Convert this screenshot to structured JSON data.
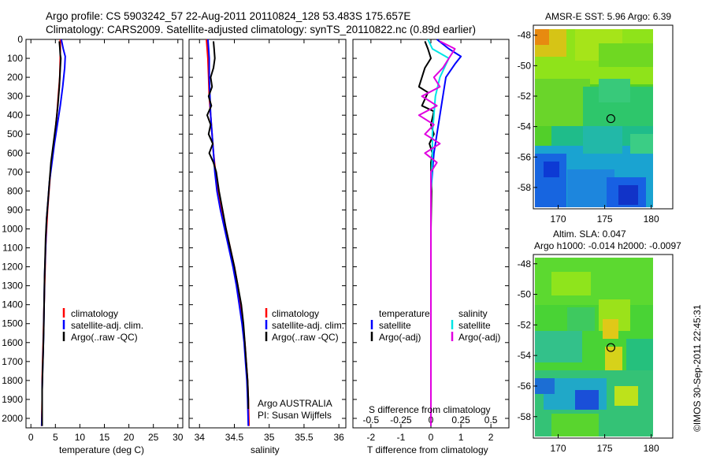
{
  "header": {
    "line1": "Argo profile: CS 5903242_57 22-Aug-2011 20110824_128 53.483S 175.657E",
    "line2": "Climatology: CARS2009. Satellite-adjusted climatology: synTS_20110822.nc (0.89d earlier)"
  },
  "footer_credit": "©IMOS 30-Sep-2011 22:45:31",
  "colors": {
    "climatology": "#ff0000",
    "satellite": "#0000ff",
    "argo": "#000000",
    "salinity_satellite": "#00e5e5",
    "salinity_argo": "#e000e0"
  },
  "chart_data": [
    {
      "id": "temperature",
      "type": "line",
      "xlabel": "temperature (deg C)",
      "ylabel": "",
      "xlim": [
        -1,
        31
      ],
      "ylim": [
        2050,
        0
      ],
      "xticks": [
        0,
        5,
        10,
        15,
        20,
        25,
        30
      ],
      "yticks": [
        0,
        100,
        200,
        300,
        400,
        500,
        600,
        700,
        800,
        900,
        1000,
        1100,
        1200,
        1300,
        1400,
        1500,
        1600,
        1700,
        1800,
        1900,
        2000
      ],
      "legend": [
        "climatology",
        "satellite-adj. clim.",
        "Argo(..raw -QC)"
      ],
      "series": [
        {
          "name": "climatology",
          "color": "#ff0000",
          "points": [
            [
              6.0,
              0
            ],
            [
              6.0,
              50
            ],
            [
              6.0,
              100
            ],
            [
              5.9,
              200
            ],
            [
              5.6,
              300
            ],
            [
              5.3,
              400
            ],
            [
              4.9,
              500
            ],
            [
              4.4,
              600
            ],
            [
              4.0,
              700
            ],
            [
              3.7,
              800
            ],
            [
              3.4,
              900
            ],
            [
              3.2,
              1000
            ],
            [
              3.0,
              1100
            ],
            [
              2.9,
              1200
            ],
            [
              2.8,
              1300
            ],
            [
              2.7,
              1400
            ],
            [
              2.6,
              1500
            ],
            [
              2.5,
              1600
            ],
            [
              2.4,
              1700
            ],
            [
              2.3,
              1800
            ],
            [
              2.3,
              1900
            ],
            [
              2.2,
              2040
            ]
          ]
        },
        {
          "name": "satellite-adj. clim.",
          "color": "#0000ff",
          "points": [
            [
              6.2,
              0
            ],
            [
              6.6,
              50
            ],
            [
              7.0,
              90
            ],
            [
              6.9,
              150
            ],
            [
              6.5,
              250
            ],
            [
              6.0,
              350
            ],
            [
              5.4,
              450
            ],
            [
              4.8,
              550
            ],
            [
              4.3,
              650
            ],
            [
              3.8,
              750
            ],
            [
              3.5,
              850
            ],
            [
              3.2,
              950
            ],
            [
              3.0,
              1100
            ],
            [
              2.8,
              1250
            ],
            [
              2.7,
              1400
            ],
            [
              2.6,
              1550
            ],
            [
              2.5,
              1650
            ],
            [
              2.4,
              1750
            ],
            [
              2.3,
              1850
            ],
            [
              2.3,
              1950
            ],
            [
              2.2,
              2040
            ]
          ]
        },
        {
          "name": "Argo(..raw -QC)",
          "color": "#000000",
          "points": [
            [
              5.8,
              10
            ],
            [
              5.9,
              40
            ],
            [
              6.0,
              80
            ],
            [
              6.1,
              100
            ],
            [
              6.0,
              150
            ],
            [
              5.9,
              200
            ],
            [
              5.8,
              250
            ],
            [
              5.5,
              350
            ],
            [
              5.1,
              450
            ],
            [
              4.6,
              550
            ],
            [
              4.1,
              650
            ],
            [
              3.8,
              750
            ],
            [
              3.5,
              850
            ],
            [
              3.2,
              950
            ],
            [
              3.0,
              1050
            ],
            [
              2.9,
              1150
            ],
            [
              2.8,
              1250
            ],
            [
              2.7,
              1400
            ],
            [
              2.6,
              1550
            ],
            [
              2.5,
              1650
            ],
            [
              2.4,
              1750
            ],
            [
              2.3,
              1850
            ],
            [
              2.3,
              1950
            ],
            [
              2.3,
              2040
            ]
          ]
        }
      ]
    },
    {
      "id": "salinity",
      "type": "line",
      "xlabel": "salinity",
      "ylabel": "",
      "xlim": [
        33.85,
        36.1
      ],
      "ylim": [
        2050,
        0
      ],
      "xticks": [
        34,
        34.5,
        35,
        35.5,
        36
      ],
      "xtick_labels": [
        "34",
        "34.5",
        "35",
        "35.5",
        "36"
      ],
      "legend": [
        "climatology",
        "satellite-adj. clim.",
        "Argo(..raw -QC)"
      ],
      "annotation": [
        "Argo AUSTRALIA",
        "PI: Susan Wijffels"
      ],
      "series": [
        {
          "name": "climatology",
          "color": "#ff0000",
          "points": [
            [
              34.1,
              0
            ],
            [
              34.11,
              50
            ],
            [
              34.12,
              100
            ],
            [
              34.13,
              200
            ],
            [
              34.14,
              300
            ],
            [
              34.16,
              400
            ],
            [
              34.18,
              500
            ],
            [
              34.2,
              600
            ],
            [
              34.23,
              700
            ],
            [
              34.27,
              800
            ],
            [
              34.32,
              900
            ],
            [
              34.38,
              1000
            ],
            [
              34.44,
              1100
            ],
            [
              34.5,
              1200
            ],
            [
              34.55,
              1300
            ],
            [
              34.59,
              1400
            ],
            [
              34.62,
              1500
            ],
            [
              34.65,
              1600
            ],
            [
              34.67,
              1700
            ],
            [
              34.69,
              1800
            ],
            [
              34.7,
              1900
            ],
            [
              34.71,
              2040
            ]
          ]
        },
        {
          "name": "satellite-adj. clim.",
          "color": "#0000ff",
          "points": [
            [
              34.12,
              0
            ],
            [
              34.13,
              50
            ],
            [
              34.14,
              100
            ],
            [
              34.14,
              200
            ],
            [
              34.15,
              300
            ],
            [
              34.16,
              400
            ],
            [
              34.18,
              500
            ],
            [
              34.2,
              600
            ],
            [
              34.22,
              700
            ],
            [
              34.25,
              800
            ],
            [
              34.3,
              900
            ],
            [
              34.36,
              1000
            ],
            [
              34.42,
              1100
            ],
            [
              34.48,
              1200
            ],
            [
              34.53,
              1300
            ],
            [
              34.57,
              1400
            ],
            [
              34.61,
              1500
            ],
            [
              34.64,
              1600
            ],
            [
              34.66,
              1700
            ],
            [
              34.68,
              1800
            ],
            [
              34.69,
              1900
            ],
            [
              34.7,
              2040
            ]
          ]
        },
        {
          "name": "Argo(..raw -QC)",
          "color": "#000000",
          "points": [
            [
              34.2,
              10
            ],
            [
              34.21,
              50
            ],
            [
              34.22,
              100
            ],
            [
              34.2,
              150
            ],
            [
              34.16,
              200
            ],
            [
              34.18,
              250
            ],
            [
              34.13,
              300
            ],
            [
              34.17,
              350
            ],
            [
              34.11,
              400
            ],
            [
              34.16,
              450
            ],
            [
              34.13,
              500
            ],
            [
              34.19,
              550
            ],
            [
              34.14,
              600
            ],
            [
              34.2,
              650
            ],
            [
              34.24,
              700
            ],
            [
              34.28,
              800
            ],
            [
              34.33,
              900
            ],
            [
              34.38,
              1000
            ],
            [
              34.44,
              1100
            ],
            [
              34.5,
              1200
            ],
            [
              34.55,
              1300
            ],
            [
              34.6,
              1400
            ],
            [
              34.63,
              1500
            ],
            [
              34.65,
              1600
            ],
            [
              34.67,
              1700
            ],
            [
              34.69,
              1800
            ],
            [
              34.7,
              1900
            ],
            [
              34.7,
              1950
            ]
          ]
        }
      ]
    },
    {
      "id": "difference",
      "type": "line",
      "xlabel": "T difference from climatology",
      "xlabel_top": "S difference from climatology",
      "xlim": [
        -2.6,
        2.6
      ],
      "ylim": [
        2050,
        0
      ],
      "xticks": [
        -2,
        -1,
        0,
        1,
        2
      ],
      "sticks": [
        -0.5,
        -0.25,
        0,
        0.25,
        0.5
      ],
      "stick_labels": [
        "-0.5",
        "-0.25",
        "0",
        "0.25",
        "0.5"
      ],
      "legend_groups": [
        {
          "title": "temperature",
          "items": [
            "satellite",
            "Argo(-adj)"
          ]
        },
        {
          "title": "salinity",
          "items": [
            "satellite",
            "Argo(-adj)"
          ]
        }
      ],
      "series": [
        {
          "name": "temperature satellite",
          "color": "#0000ff",
          "points": [
            [
              0.2,
              0
            ],
            [
              0.6,
              50
            ],
            [
              1.0,
              90
            ],
            [
              0.8,
              130
            ],
            [
              0.5,
              200
            ],
            [
              0.4,
              300
            ],
            [
              0.3,
              400
            ],
            [
              0.2,
              500
            ],
            [
              0.1,
              600
            ],
            [
              0.05,
              700
            ],
            [
              0.0,
              800
            ],
            [
              0.0,
              1000
            ],
            [
              0.0,
              1400
            ],
            [
              0.0,
              2040
            ]
          ]
        },
        {
          "name": "temperature Argo(-adj)",
          "color": "#000000",
          "points": [
            [
              -0.2,
              10
            ],
            [
              -0.1,
              50
            ],
            [
              0.0,
              100
            ],
            [
              -0.2,
              150
            ],
            [
              -0.4,
              250
            ],
            [
              -0.1,
              280
            ],
            [
              -0.3,
              350
            ],
            [
              0.1,
              380
            ],
            [
              0.0,
              450
            ],
            [
              0.1,
              500
            ],
            [
              -0.05,
              550
            ],
            [
              0.05,
              600
            ],
            [
              0.0,
              650
            ],
            [
              0.02,
              800
            ],
            [
              0.0,
              1000
            ],
            [
              0.0,
              1400
            ],
            [
              0.0,
              2040
            ]
          ]
        },
        {
          "name": "salinity satellite",
          "color": "#00e5e5",
          "points": [
            [
              -0.1,
              0
            ],
            [
              0.05,
              50
            ],
            [
              0.6,
              100
            ],
            [
              0.3,
              200
            ],
            [
              0.15,
              300
            ],
            [
              0.1,
              400
            ],
            [
              0.05,
              500
            ],
            [
              0.05,
              600
            ],
            [
              0.03,
              700
            ],
            [
              0.0,
              800
            ],
            [
              0.0,
              1000
            ],
            [
              0.0,
              1400
            ],
            [
              0.0,
              2040
            ]
          ]
        },
        {
          "name": "salinity Argo(-adj)",
          "color": "#e000e0",
          "points": [
            [
              0.3,
              10
            ],
            [
              0.8,
              50
            ],
            [
              0.6,
              100
            ],
            [
              0.4,
              150
            ],
            [
              0.1,
              200
            ],
            [
              0.3,
              250
            ],
            [
              -0.3,
              300
            ],
            [
              0.2,
              350
            ],
            [
              -0.4,
              400
            ],
            [
              0.1,
              450
            ],
            [
              -0.2,
              500
            ],
            [
              0.3,
              550
            ],
            [
              -0.2,
              600
            ],
            [
              0.2,
              650
            ],
            [
              0.0,
              700
            ],
            [
              0.0,
              800
            ],
            [
              0.0,
              1000
            ],
            [
              0.0,
              1400
            ],
            [
              0.0,
              2040
            ]
          ]
        }
      ]
    },
    {
      "id": "sst-map",
      "type": "heatmap",
      "title": "AMSR-E SST: 5.96 Argo: 6.39",
      "xticks": [
        170,
        175,
        180
      ],
      "yticks": [
        -48,
        -50,
        -52,
        -54,
        -56,
        -58
      ],
      "xlim": [
        167.5,
        180.2
      ],
      "ylim": [
        -59.3,
        -47.6
      ],
      "marker": [
        175.66,
        -53.48
      ],
      "colormap": "jet"
    },
    {
      "id": "sla-map",
      "type": "heatmap",
      "title": "Altim. SLA: 0.047",
      "subtitle": "Argo h1000: -0.014 h2000: -0.0097",
      "xticks": [
        170,
        175,
        180
      ],
      "yticks": [
        -48,
        -50,
        -52,
        -54,
        -56,
        -58
      ],
      "xlim": [
        167.5,
        180.2
      ],
      "ylim": [
        -59.3,
        -47.6
      ],
      "marker": [
        175.66,
        -53.48
      ],
      "colormap": "jet"
    }
  ]
}
